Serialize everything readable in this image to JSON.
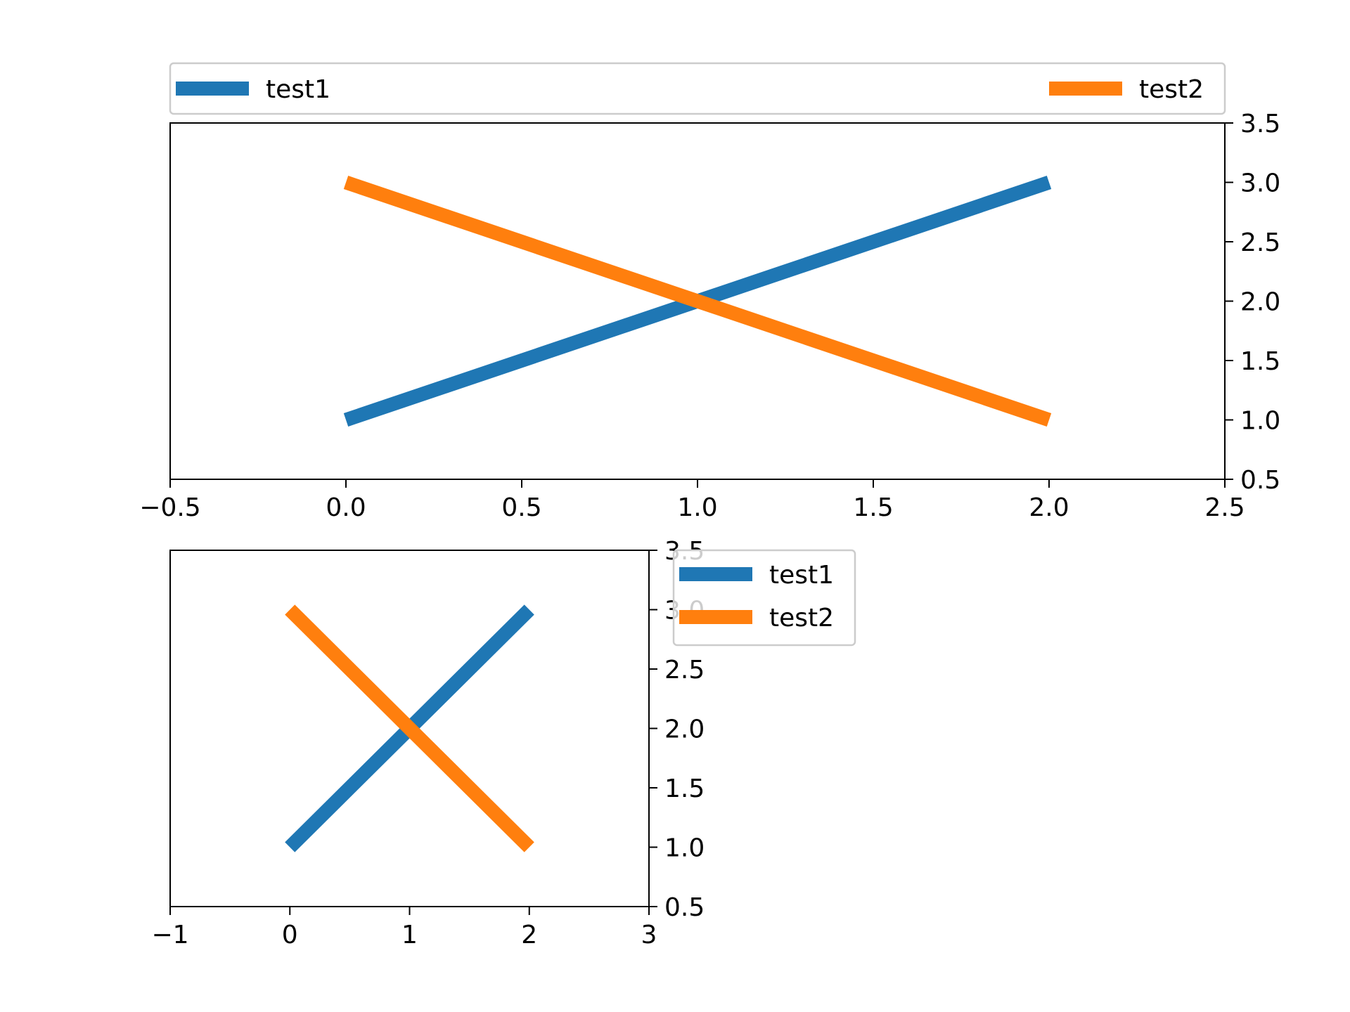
{
  "chart_data": [
    {
      "type": "line",
      "x_ticks": [
        "−0.5",
        "0.0",
        "0.5",
        "1.0",
        "1.5",
        "2.0",
        "2.5"
      ],
      "x_tick_values": [
        -0.5,
        0.0,
        0.5,
        1.0,
        1.5,
        2.0,
        2.5
      ],
      "y_ticks": [
        "0.5",
        "1.0",
        "1.5",
        "2.0",
        "2.5",
        "3.0",
        "3.5"
      ],
      "y_tick_values": [
        0.5,
        1.0,
        1.5,
        2.0,
        2.5,
        3.0,
        3.5
      ],
      "xlim": [
        -0.5,
        2.5
      ],
      "ylim": [
        0.5,
        3.5
      ],
      "y_axis_side": "right",
      "grid": false,
      "legend_placement": "above, expanded across top",
      "series": [
        {
          "name": "test1",
          "color": "#1f77b4",
          "x": [
            0,
            1,
            2
          ],
          "y": [
            1,
            2,
            3
          ]
        },
        {
          "name": "test2",
          "color": "#ff7f0e",
          "x": [
            0,
            1,
            2
          ],
          "y": [
            3,
            2,
            1
          ]
        }
      ]
    },
    {
      "type": "line",
      "x_ticks": [
        "−1",
        "0",
        "1",
        "2",
        "3"
      ],
      "x_tick_values": [
        -1,
        0,
        1,
        2,
        3
      ],
      "y_ticks": [
        "0.5",
        "1.0",
        "1.5",
        "2.0",
        "2.5",
        "3.0",
        "3.5"
      ],
      "y_tick_values": [
        0.5,
        1.0,
        1.5,
        2.0,
        2.5,
        3.0,
        3.5
      ],
      "xlim": [
        -1,
        3
      ],
      "ylim": [
        0.5,
        3.5
      ],
      "y_axis_side": "right",
      "grid": false,
      "legend_placement": "right, upper",
      "series": [
        {
          "name": "test1",
          "color": "#1f77b4",
          "x": [
            0,
            1,
            2
          ],
          "y": [
            1,
            2,
            3
          ]
        },
        {
          "name": "test2",
          "color": "#ff7f0e",
          "x": [
            0,
            1,
            2
          ],
          "y": [
            3,
            2,
            1
          ]
        }
      ]
    }
  ]
}
